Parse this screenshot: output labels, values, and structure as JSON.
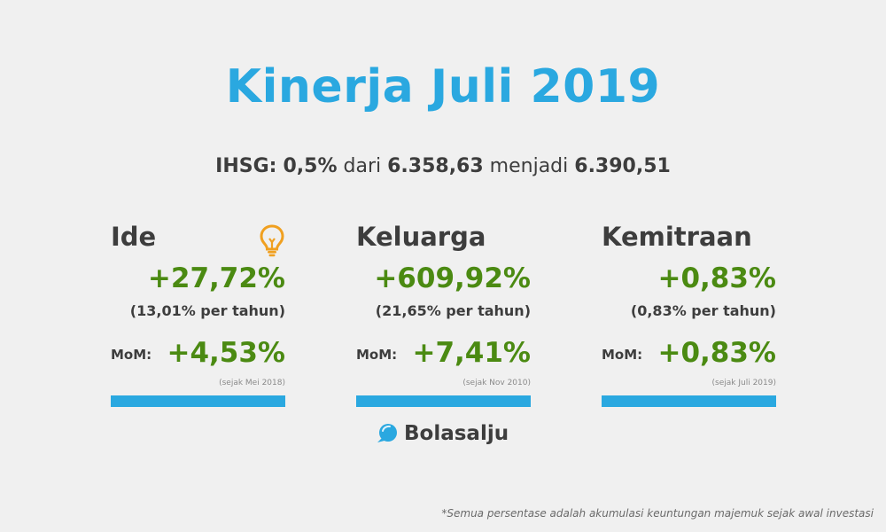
{
  "title": "Kinerja Juli 2019",
  "ihsg": {
    "label": "IHSG:",
    "change": "0,5%",
    "from_word": "dari",
    "from_value": "6.358,63",
    "to_word": "menjadi",
    "to_value": "6.390,51"
  },
  "portfolios": [
    {
      "name": "Ide",
      "total": "+27,72%",
      "annual": "(13,01% per tahun)",
      "mom_label": "MoM:",
      "mom_value": "+4,53%",
      "since": "(sejak Mei 2018)",
      "icon": "lightbulb-icon"
    },
    {
      "name": "Keluarga",
      "total": "+609,92%",
      "annual": "(21,65% per tahun)",
      "mom_label": "MoM:",
      "mom_value": "+7,41%",
      "since": "(sejak Nov 2010)"
    },
    {
      "name": "Kemitraan",
      "total": "+0,83%",
      "annual": "(0,83% per tahun)",
      "mom_label": "MoM:",
      "mom_value": "+0,83%",
      "since": "(sejak Juli 2019)"
    }
  ],
  "brand": {
    "name": "Bolasalju",
    "icon": "speech-bubble-logo"
  },
  "footnote": "*Semua persentase adalah akumulasi keuntungan majemuk sejak awal investasi",
  "colors": {
    "title": "#2aa8e0",
    "positive": "#4b8a12",
    "bar": "#2aa8e0",
    "bulb": "#f0a020",
    "background": "#f0f0f0"
  }
}
